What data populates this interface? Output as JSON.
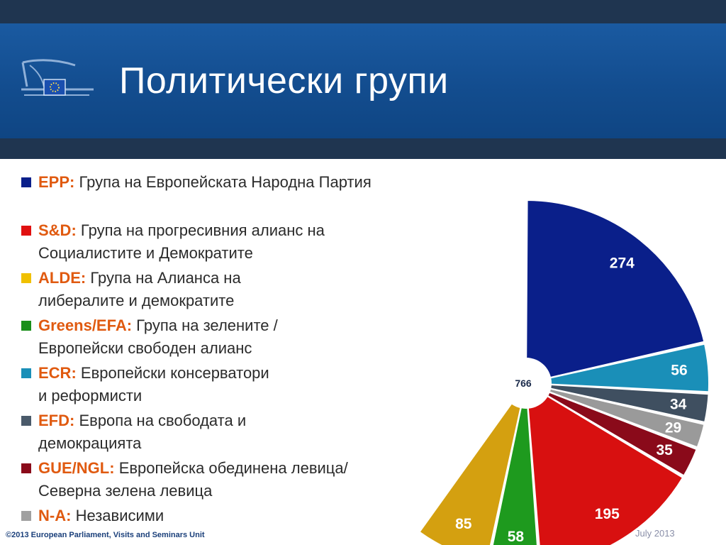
{
  "header": {
    "title": "Политически групи"
  },
  "logo": {
    "icon": "european-parliament-logo"
  },
  "legend": [
    {
      "code": "EPP:",
      "desc": "Група на Европейската Народна Партия",
      "color": "#0a1f8a"
    },
    {
      "code": "S&D:",
      "desc": "Група на прогресивния алианс на\nСоциалистите и Демократите",
      "color": "#e01010"
    },
    {
      "code": "ALDE:",
      "desc": "Група на Алианса на\nлибералите и демократите",
      "color": "#f0c000"
    },
    {
      "code": "Greens/EFA:",
      "desc": "Група на зелените /\nЕвропейски свободен алианс",
      "color": "#1a8f1a"
    },
    {
      "code": "ECR:",
      "desc": "Европейски консерватори\nи реформисти",
      "color": "#1a8fb8"
    },
    {
      "code": "EFD:",
      "desc": "Европа на свободата и\nдемокрацията",
      "color": "#4a5a6a"
    },
    {
      "code": "GUE/NGL:",
      "desc": "Европейска обединена левица/\nСеверна зелена левица",
      "color": "#8a0a1a"
    },
    {
      "code": "N-A:",
      "desc": "Независими",
      "color": "#a0a0a0"
    }
  ],
  "chart_data": {
    "type": "pie",
    "layout": "hemicycle",
    "total": 766,
    "series": [
      {
        "label": "EPP",
        "value": 274,
        "color": "#0a1f8a",
        "label_color": "#ffffff"
      },
      {
        "label": "ECR",
        "value": 56,
        "color": "#1a8fb8",
        "label_color": "#ffffff"
      },
      {
        "label": "EFD",
        "value": 34,
        "color": "#3f4f60",
        "label_color": "#ffffff"
      },
      {
        "label": "N-A",
        "value": 29,
        "color": "#9a9a9a",
        "label_color": "#ffffff"
      },
      {
        "label": "GUE/NGL",
        "value": 35,
        "color": "#8a0a1a",
        "label_color": "#ffffff"
      },
      {
        "label": "S&D",
        "value": 195,
        "color": "#d81010",
        "label_color": "#ffffff"
      },
      {
        "label": "Greens/EFA",
        "value": 58,
        "color": "#1e9a1e",
        "label_color": "#ffffff"
      },
      {
        "label": "ALDE",
        "value": 85,
        "color": "#d4a010",
        "label_color": "#ffffff"
      }
    ]
  },
  "footer": {
    "copyright": "©2013 European Parliament, Visits and Seminars Unit",
    "date": "July 2013"
  }
}
